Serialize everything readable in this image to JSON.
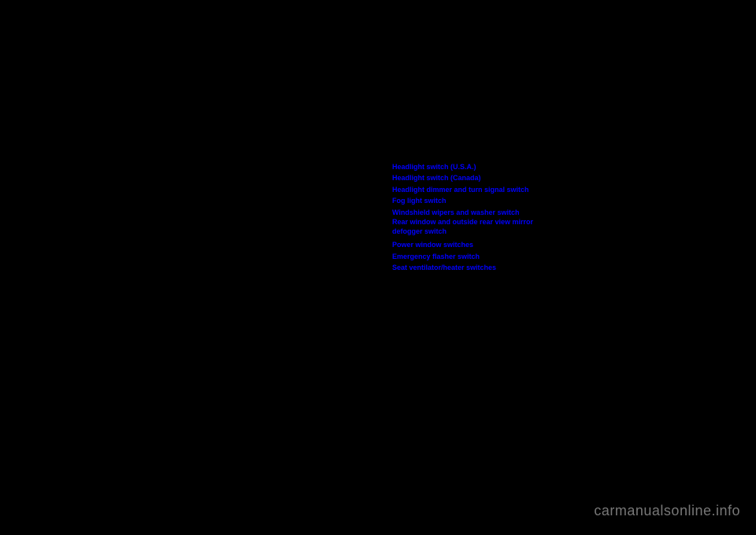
{
  "links": [
    "Headlight switch (U.S.A.)",
    "Headlight switch (Canada)",
    "Headlight dimmer and turn signal switch",
    "Fog light switch",
    "Windshield wipers and washer switch",
    "Rear window and outside rear view mirror defogger switch",
    "Power window switches",
    "Emergency flasher switch",
    "Seat ventilator/heater switches"
  ],
  "watermark": "carmanualsonline.info",
  "colors": {
    "background": "#000000",
    "link": "#0000ff",
    "watermark": "#777777"
  }
}
